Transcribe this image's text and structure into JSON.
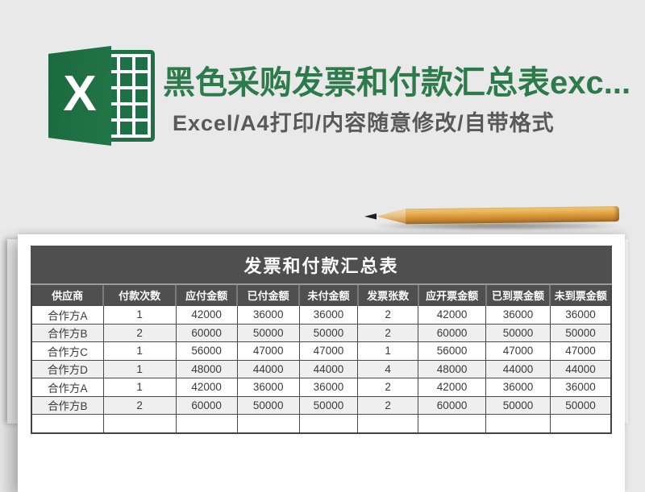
{
  "page": {
    "background_color": "#e9e9e9",
    "accent_green": "#1e7145",
    "bar_dark": "#4f4f4f",
    "stripe_gray": "#efefef",
    "pencil_wood_color": "#dd9c3e"
  },
  "hero": {
    "title": "黑色采购发票和付款汇总表exc...",
    "title_color": "#2d7a4b",
    "subtitle": "Excel/A4打印/内容随意修改/自带格式",
    "subtitle_color": "#595959",
    "logo": {
      "name": "excel-logo",
      "letter": "X",
      "color": "#1e7145"
    }
  },
  "sheet": {
    "title": "发票和付款汇总表",
    "columns": [
      "供应商",
      "付款次数",
      "应付金额",
      "已付金额",
      "未付金额",
      "发票张数",
      "应开票金额",
      "已到票金额",
      "未到票金额"
    ],
    "rows": [
      [
        "合作方A",
        "1",
        "42000",
        "36000",
        "36000",
        "2",
        "42000",
        "36000",
        "36000"
      ],
      [
        "合作方B",
        "2",
        "60000",
        "50000",
        "50000",
        "2",
        "60000",
        "50000",
        "50000"
      ],
      [
        "合作方C",
        "1",
        "56000",
        "47000",
        "47000",
        "1",
        "56000",
        "47000",
        "47000"
      ],
      [
        "合作方D",
        "1",
        "48000",
        "44000",
        "44000",
        "4",
        "48000",
        "44000",
        "44000"
      ],
      [
        "合作方A",
        "1",
        "42000",
        "36000",
        "36000",
        "2",
        "42000",
        "36000",
        "36000"
      ],
      [
        "合作方B",
        "2",
        "60000",
        "50000",
        "50000",
        "2",
        "60000",
        "50000",
        "50000"
      ],
      [
        "",
        "",
        "",
        "",
        "",
        "",
        "",
        "",
        ""
      ]
    ]
  }
}
